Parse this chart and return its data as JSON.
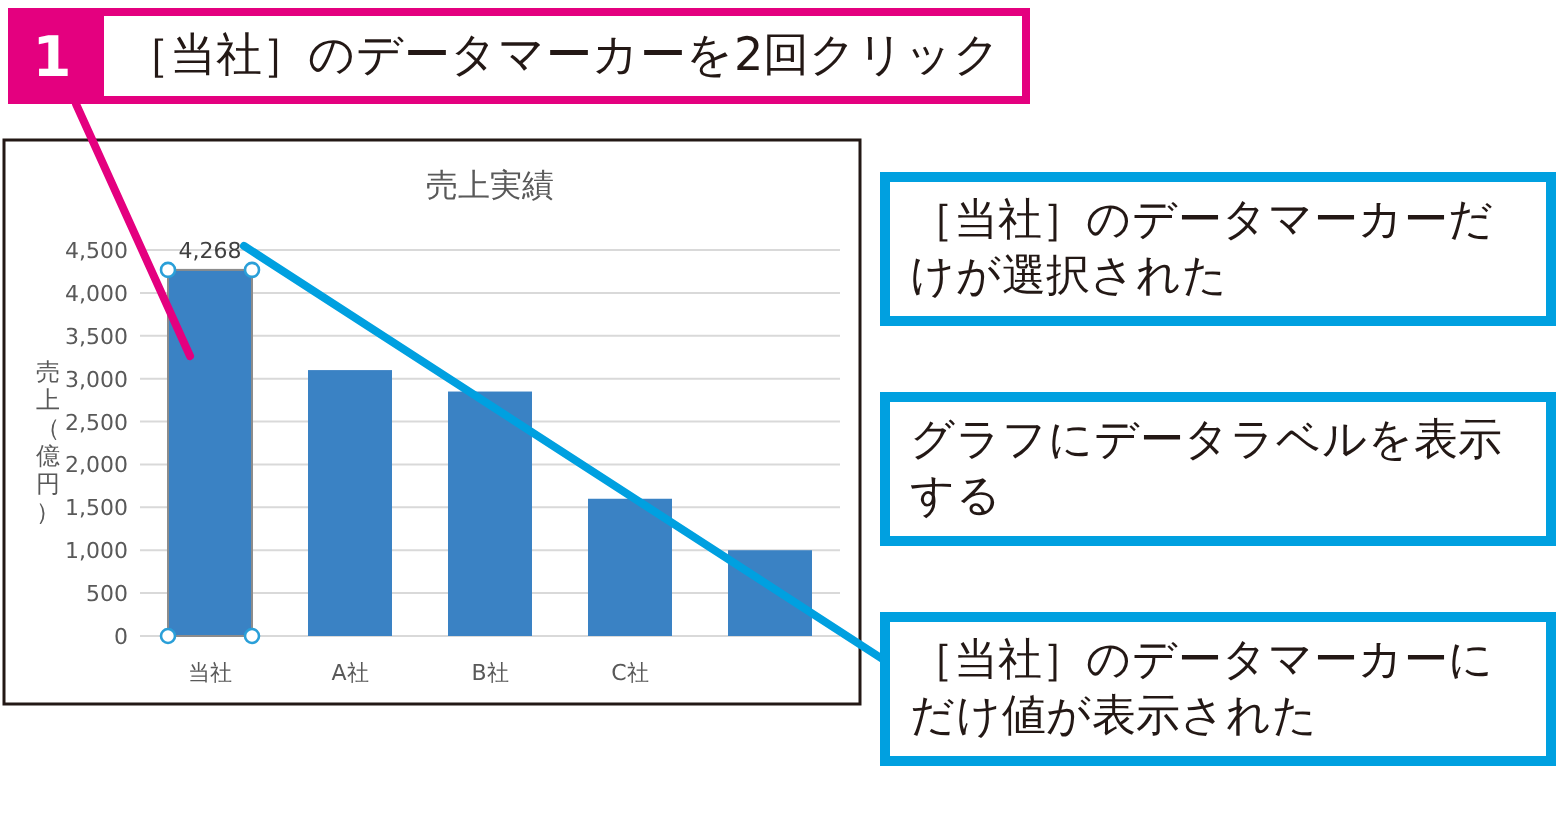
{
  "chart_data": {
    "type": "bar",
    "title": "売上実績",
    "ylabel": "売上（億円）",
    "categories": [
      "当社",
      "A社",
      "B社",
      "C社",
      null
    ],
    "values": [
      4268,
      3100,
      2850,
      1600,
      1000
    ],
    "value_labels": [
      "4,268",
      null,
      null,
      null,
      null
    ],
    "color": "#3a82c4",
    "ylim": [
      0,
      4500
    ],
    "yticks": [
      0,
      500,
      {
        "value": 1000,
        "label": "1,000"
      },
      {
        "value": 1500,
        "label": "1,500"
      },
      {
        "value": 2000,
        "label": "2,000"
      },
      {
        "value": 2500,
        "label": "2,500"
      },
      {
        "value": 3000,
        "label": "3,000"
      },
      {
        "value": 3500,
        "label": "3,500"
      },
      {
        "value": 4000,
        "label": "4,000"
      },
      {
        "value": 4500,
        "label": "4,500"
      }
    ],
    "grid": "y",
    "annotations": [
      "1",
      "［当社］のデータマーカーを2回クリック",
      "［当社］のデータマーカーだけが選択された",
      "グラフにデータラベルを表示する",
      "［当社］のデータマーカーにだけ値が表示された"
    ]
  }
}
